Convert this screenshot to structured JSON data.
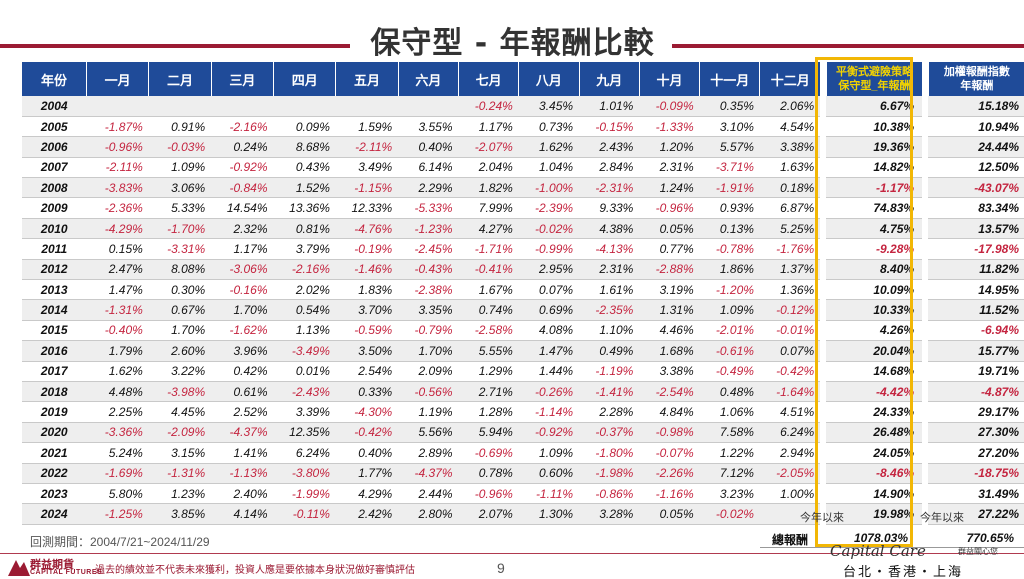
{
  "title": "保守型 - 年報酬比較",
  "headers": [
    "年份",
    "一月",
    "二月",
    "三月",
    "四月",
    "五月",
    "六月",
    "七月",
    "八月",
    "九月",
    "十月",
    "十一月",
    "十二月"
  ],
  "strategy_header": [
    "平衡式避險策略",
    "保守型_年報酬"
  ],
  "index_header": [
    "加權報酬指數",
    "年報酬"
  ],
  "rows": [
    {
      "year": "2004",
      "m": [
        "",
        "",
        "",
        "",
        "",
        "",
        "-0.24%",
        "3.45%",
        "1.01%",
        "-0.09%",
        "0.35%",
        "2.06%"
      ],
      "strategy": "6.67%",
      "index": "15.18%"
    },
    {
      "year": "2005",
      "m": [
        "-1.87%",
        "0.91%",
        "-2.16%",
        "0.09%",
        "1.59%",
        "3.55%",
        "1.17%",
        "0.73%",
        "-0.15%",
        "-1.33%",
        "3.10%",
        "4.54%"
      ],
      "strategy": "10.38%",
      "index": "10.94%"
    },
    {
      "year": "2006",
      "m": [
        "-0.96%",
        "-0.03%",
        "0.24%",
        "8.68%",
        "-2.11%",
        "0.40%",
        "-2.07%",
        "1.62%",
        "2.43%",
        "1.20%",
        "5.57%",
        "3.38%"
      ],
      "strategy": "19.36%",
      "index": "24.44%"
    },
    {
      "year": "2007",
      "m": [
        "-2.11%",
        "1.09%",
        "-0.92%",
        "0.43%",
        "3.49%",
        "6.14%",
        "2.04%",
        "1.04%",
        "2.84%",
        "2.31%",
        "-3.71%",
        "1.63%"
      ],
      "strategy": "14.82%",
      "index": "12.50%"
    },
    {
      "year": "2008",
      "m": [
        "-3.83%",
        "3.06%",
        "-0.84%",
        "1.52%",
        "-1.15%",
        "2.29%",
        "1.82%",
        "-1.00%",
        "-2.31%",
        "1.24%",
        "-1.91%",
        "0.18%"
      ],
      "strategy": "-1.17%",
      "index": "-43.07%"
    },
    {
      "year": "2009",
      "m": [
        "-2.36%",
        "5.33%",
        "14.54%",
        "13.36%",
        "12.33%",
        "-5.33%",
        "7.99%",
        "-2.39%",
        "9.33%",
        "-0.96%",
        "0.93%",
        "6.87%"
      ],
      "strategy": "74.83%",
      "index": "83.34%"
    },
    {
      "year": "2010",
      "m": [
        "-4.29%",
        "-1.70%",
        "2.32%",
        "0.81%",
        "-4.76%",
        "-1.23%",
        "4.27%",
        "-0.02%",
        "4.38%",
        "0.05%",
        "0.13%",
        "5.25%"
      ],
      "strategy": "4.75%",
      "index": "13.57%"
    },
    {
      "year": "2011",
      "m": [
        "0.15%",
        "-3.31%",
        "1.17%",
        "3.79%",
        "-0.19%",
        "-2.45%",
        "-1.71%",
        "-0.99%",
        "-4.13%",
        "0.77%",
        "-0.78%",
        "-1.76%"
      ],
      "strategy": "-9.28%",
      "index": "-17.98%"
    },
    {
      "year": "2012",
      "m": [
        "2.47%",
        "8.08%",
        "-3.06%",
        "-2.16%",
        "-1.46%",
        "-0.43%",
        "-0.41%",
        "2.95%",
        "2.31%",
        "-2.88%",
        "1.86%",
        "1.37%"
      ],
      "strategy": "8.40%",
      "index": "11.82%"
    },
    {
      "year": "2013",
      "m": [
        "1.47%",
        "0.30%",
        "-0.16%",
        "2.02%",
        "1.83%",
        "-2.38%",
        "1.67%",
        "0.07%",
        "1.61%",
        "3.19%",
        "-1.20%",
        "1.36%"
      ],
      "strategy": "10.09%",
      "index": "14.95%"
    },
    {
      "year": "2014",
      "m": [
        "-1.31%",
        "0.67%",
        "1.70%",
        "0.54%",
        "3.70%",
        "3.35%",
        "0.74%",
        "0.69%",
        "-2.35%",
        "1.31%",
        "1.09%",
        "-0.12%"
      ],
      "strategy": "10.33%",
      "index": "11.52%"
    },
    {
      "year": "2015",
      "m": [
        "-0.40%",
        "1.70%",
        "-1.62%",
        "1.13%",
        "-0.59%",
        "-0.79%",
        "-2.58%",
        "4.08%",
        "1.10%",
        "4.46%",
        "-2.01%",
        "-0.01%"
      ],
      "strategy": "4.26%",
      "index": "-6.94%"
    },
    {
      "year": "2016",
      "m": [
        "1.79%",
        "2.60%",
        "3.96%",
        "-3.49%",
        "3.50%",
        "1.70%",
        "5.55%",
        "1.47%",
        "0.49%",
        "1.68%",
        "-0.61%",
        "0.07%"
      ],
      "strategy": "20.04%",
      "index": "15.77%"
    },
    {
      "year": "2017",
      "m": [
        "1.62%",
        "3.22%",
        "0.42%",
        "0.01%",
        "2.54%",
        "2.09%",
        "1.29%",
        "1.44%",
        "-1.19%",
        "3.38%",
        "-0.49%",
        "-0.42%"
      ],
      "strategy": "14.68%",
      "index": "19.71%"
    },
    {
      "year": "2018",
      "m": [
        "4.48%",
        "-3.98%",
        "0.61%",
        "-2.43%",
        "0.33%",
        "-0.56%",
        "2.71%",
        "-0.26%",
        "-1.41%",
        "-2.54%",
        "0.48%",
        "-1.64%"
      ],
      "strategy": "-4.42%",
      "index": "-4.87%"
    },
    {
      "year": "2019",
      "m": [
        "2.25%",
        "4.45%",
        "2.52%",
        "3.39%",
        "-4.30%",
        "1.19%",
        "1.28%",
        "-1.14%",
        "2.28%",
        "4.84%",
        "1.06%",
        "4.51%"
      ],
      "strategy": "24.33%",
      "index": "29.17%"
    },
    {
      "year": "2020",
      "m": [
        "-3.36%",
        "-2.09%",
        "-4.37%",
        "12.35%",
        "-0.42%",
        "5.56%",
        "5.94%",
        "-0.92%",
        "-0.37%",
        "-0.98%",
        "7.58%",
        "6.24%"
      ],
      "strategy": "26.48%",
      "index": "27.30%"
    },
    {
      "year": "2021",
      "m": [
        "5.24%",
        "3.15%",
        "1.41%",
        "6.24%",
        "0.40%",
        "2.89%",
        "-0.69%",
        "1.09%",
        "-1.80%",
        "-0.07%",
        "1.22%",
        "2.94%"
      ],
      "strategy": "24.05%",
      "index": "27.20%"
    },
    {
      "year": "2022",
      "m": [
        "-1.69%",
        "-1.31%",
        "-1.13%",
        "-3.80%",
        "1.77%",
        "-4.37%",
        "0.78%",
        "0.60%",
        "-1.98%",
        "-2.26%",
        "7.12%",
        "-2.05%"
      ],
      "strategy": "-8.46%",
      "index": "-18.75%"
    },
    {
      "year": "2023",
      "m": [
        "5.80%",
        "1.23%",
        "2.40%",
        "-1.99%",
        "4.29%",
        "2.44%",
        "-0.96%",
        "-1.11%",
        "-0.86%",
        "-1.16%",
        "3.23%",
        "1.00%"
      ],
      "strategy": "14.90%",
      "index": "31.49%"
    },
    {
      "year": "2024",
      "m": [
        "-1.25%",
        "3.85%",
        "4.14%",
        "-0.11%",
        "2.42%",
        "2.80%",
        "2.07%",
        "1.30%",
        "3.28%",
        "0.05%",
        "-0.02%",
        ""
      ],
      "strategy": "19.98%",
      "index": "27.22%"
    }
  ],
  "ytd_label": "今年以來",
  "ytd_label_index": "今年以來",
  "period_label": "回測期間：2004/7/21~2024/11/29",
  "total_label": "總報酬",
  "total_strategy": "1078.03%",
  "total_index": "770.65%",
  "footer": {
    "logo_zh": "群益期貨",
    "logo_en": "CAPITAL FUTURES",
    "disclaimer": "過去的績效並不代表未來獲利，投資人應是要依據本身狀況做好審慎評估",
    "page": "9",
    "brand_script": "Capital Care",
    "brand_zh": "群益關心您",
    "cities": "台北・香港・上海"
  },
  "colors": {
    "header_bg": "#1f4b99",
    "negative": "#c4243f",
    "accent_line": "#9b1b33",
    "highlight_box": "#f2b705"
  }
}
